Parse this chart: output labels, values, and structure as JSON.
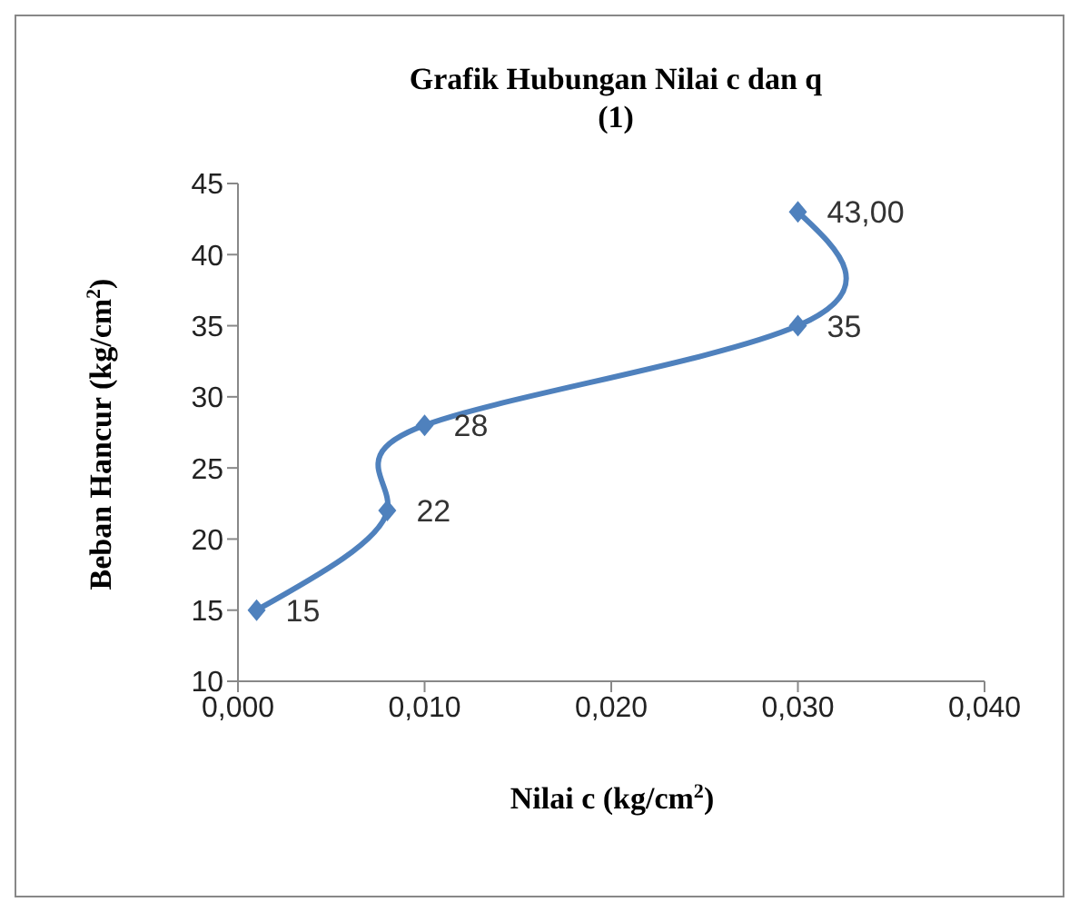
{
  "chart_data": {
    "type": "line",
    "title": "Grafik Hubungan Nilai c dan q\n(1)",
    "xlabel": "Nilai c (kg/cm$^{2}$)",
    "ylabel": "Beban Hancur (kg/cm$^{2}$)",
    "x": [
      0.001,
      0.008,
      0.01,
      0.03,
      0.03
    ],
    "series": [
      {
        "color": "#4f81bd",
        "values": [
          15,
          22,
          28,
          35,
          43
        ],
        "value_labels": [
          "15",
          "22",
          "28",
          "35",
          "43,00"
        ]
      }
    ],
    "xlim": [
      0,
      0.04
    ],
    "xticks": [
      {
        "value": 0,
        "label": "0,000"
      },
      {
        "value": 0.01,
        "label": "0,010"
      },
      {
        "value": 0.02,
        "label": "0,020"
      },
      {
        "value": 0.03,
        "label": "0,030"
      },
      {
        "value": 0.04,
        "label": "0,040"
      }
    ],
    "ylim": [
      10,
      45
    ],
    "yticks": [
      10,
      15,
      20,
      25,
      30,
      35,
      40,
      45
    ],
    "grid": false,
    "legend": false,
    "marker": "diamond",
    "line_style": "solid"
  }
}
